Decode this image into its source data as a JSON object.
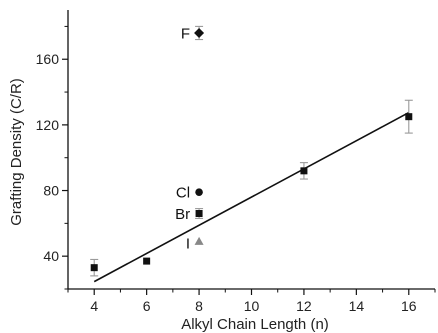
{
  "chart_data": {
    "type": "scatter",
    "xlabel": "Alkyl Chain Length (n)",
    "ylabel": "Grafting Density (C/R)",
    "xlim": [
      3,
      17
    ],
    "ylim": [
      20,
      190
    ],
    "x_ticks": [
      4,
      6,
      8,
      10,
      12,
      14,
      16
    ],
    "y_ticks": [
      40,
      80,
      120,
      160
    ],
    "grid": false,
    "legend": "none",
    "series": [
      {
        "marker": "square",
        "points": [
          {
            "x": 4,
            "y": 33,
            "err": 5
          },
          {
            "x": 6,
            "y": 37,
            "err": 0
          },
          {
            "x": 8,
            "y": 66,
            "err": 3
          },
          {
            "x": 12,
            "y": 92,
            "err": 5
          },
          {
            "x": 16,
            "y": 125,
            "err": 10
          }
        ]
      },
      {
        "marker": "diamond",
        "label": "F",
        "points": [
          {
            "x": 8,
            "y": 176,
            "err": 4
          }
        ]
      },
      {
        "marker": "circle",
        "label": "Cl",
        "points": [
          {
            "x": 8,
            "y": 79,
            "err": 0
          }
        ]
      },
      {
        "marker": "triangle",
        "label": "I",
        "points": [
          {
            "x": 8,
            "y": 49,
            "err": 0
          }
        ]
      }
    ],
    "annotations": [
      {
        "text": "F",
        "x": 8,
        "y": 176
      },
      {
        "text": "Cl",
        "x": 8,
        "y": 79
      },
      {
        "text": "Br",
        "x": 8,
        "y": 66
      },
      {
        "text": "I",
        "x": 8,
        "y": 48
      }
    ],
    "fit_line": {
      "x": [
        4,
        16
      ],
      "y": [
        24.5,
        127.5
      ]
    },
    "colors": {
      "marker": "#111111",
      "triangle": "#888888",
      "error_bar": "#9a9a9a"
    }
  }
}
